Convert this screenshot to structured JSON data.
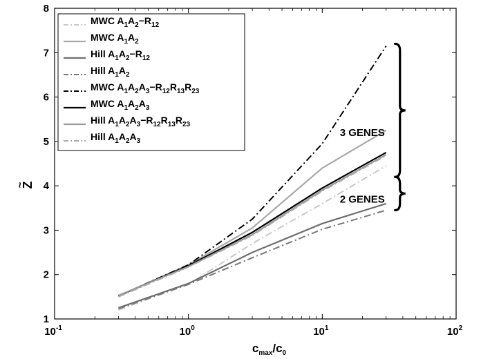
{
  "chart_data": {
    "type": "line",
    "xscale": "log",
    "xlim": [
      0.1,
      100
    ],
    "ylim": [
      1,
      8
    ],
    "x_ticks": [
      {
        "value": 0.1,
        "base": "10",
        "exp": "-1"
      },
      {
        "value": 1,
        "base": "10",
        "exp": "0"
      },
      {
        "value": 10,
        "base": "10",
        "exp": "1"
      },
      {
        "value": 100,
        "base": "10",
        "exp": "2"
      }
    ],
    "y_ticks": [
      1,
      2,
      3,
      4,
      5,
      6,
      7,
      8
    ],
    "xlabel": {
      "main": "c",
      "sub1": "max",
      "slash": "/c",
      "sub2": "0"
    },
    "ylabel": "Z",
    "ylabel_accent": "~",
    "grid": false,
    "legend_position": "top-left",
    "x": [
      0.3,
      1,
      3,
      10,
      30
    ],
    "series": [
      {
        "name_parts": [
          [
            "MWC A",
            ""
          ],
          [
            "1",
            "sub"
          ],
          [
            "A",
            ""
          ],
          [
            "2",
            "sub"
          ],
          [
            "−R",
            ""
          ],
          [
            "12",
            "sub"
          ]
        ],
        "values": [
          1.2,
          1.78,
          2.7,
          3.6,
          4.45
        ],
        "color": "#c8c8c8",
        "dash": "10,4,2,4",
        "width": 2
      },
      {
        "name_parts": [
          [
            "MWC A",
            ""
          ],
          [
            "1",
            "sub"
          ],
          [
            "A",
            ""
          ],
          [
            "2",
            "sub"
          ]
        ],
        "values": [
          1.52,
          2.22,
          3.05,
          4.4,
          5.25
        ],
        "color": "#a8a8a8",
        "dash": "",
        "width": 2.2
      },
      {
        "name_parts": [
          [
            "Hill A",
            ""
          ],
          [
            "1",
            "sub"
          ],
          [
            "A",
            ""
          ],
          [
            "2",
            "sub"
          ],
          [
            "−R",
            ""
          ],
          [
            "12",
            "sub"
          ]
        ],
        "values": [
          1.25,
          1.8,
          2.5,
          3.15,
          3.6
        ],
        "color": "#6e6e6e",
        "dash": "",
        "width": 2.2
      },
      {
        "name_parts": [
          [
            "Hill A",
            ""
          ],
          [
            "1",
            "sub"
          ],
          [
            "A",
            ""
          ],
          [
            "2",
            "sub"
          ]
        ],
        "values": [
          1.23,
          1.78,
          2.38,
          3.02,
          3.45
        ],
        "color": "#777777",
        "dash": "10,4,2,4",
        "width": 2
      },
      {
        "name_parts": [
          [
            "MWC A",
            ""
          ],
          [
            "1",
            "sub"
          ],
          [
            "A",
            ""
          ],
          [
            "2",
            "sub"
          ],
          [
            "A",
            ""
          ],
          [
            "3",
            "sub"
          ],
          [
            "−R",
            ""
          ],
          [
            "12",
            "sub"
          ],
          [
            "R",
            ""
          ],
          [
            "13",
            "sub"
          ],
          [
            "R",
            ""
          ],
          [
            "23",
            "sub"
          ]
        ],
        "values": [
          1.52,
          2.22,
          3.25,
          4.95,
          7.15
        ],
        "color": "#000000",
        "dash": "10,4,2,4",
        "width": 2
      },
      {
        "name_parts": [
          [
            "MWC A",
            ""
          ],
          [
            "1",
            "sub"
          ],
          [
            "A",
            ""
          ],
          [
            "2",
            "sub"
          ],
          [
            "A",
            ""
          ],
          [
            "3",
            "sub"
          ]
        ],
        "values": [
          1.52,
          2.2,
          2.95,
          3.95,
          4.75
        ],
        "color": "#000000",
        "dash": "",
        "width": 2.2
      },
      {
        "name_parts": [
          [
            "Hill A",
            ""
          ],
          [
            "1",
            "sub"
          ],
          [
            "A",
            ""
          ],
          [
            "2",
            "sub"
          ],
          [
            "A",
            ""
          ],
          [
            "3",
            "sub"
          ],
          [
            "−R",
            ""
          ],
          [
            "12",
            "sub"
          ],
          [
            "R",
            ""
          ],
          [
            "13",
            "sub"
          ],
          [
            "R",
            ""
          ],
          [
            "23",
            "sub"
          ]
        ],
        "values": [
          1.53,
          2.18,
          2.9,
          3.9,
          4.7
        ],
        "color": "#999999",
        "dash": "",
        "width": 2.2
      },
      {
        "name_parts": [
          [
            "Hill A",
            ""
          ],
          [
            "1",
            "sub"
          ],
          [
            "A",
            ""
          ],
          [
            "2",
            "sub"
          ],
          [
            "A",
            ""
          ],
          [
            "3",
            "sub"
          ]
        ],
        "values": [
          1.5,
          2.17,
          2.88,
          3.88,
          4.68
        ],
        "color": "#aaaaaa",
        "dash": "10,4,2,4",
        "width": 2
      }
    ],
    "annotations": [
      {
        "text": "3 GENES",
        "y_from": 4.2,
        "y_to": 7.2,
        "label_y": 5.2
      },
      {
        "text": "2 GENES",
        "y_from": 3.45,
        "y_to": 4.2,
        "label_y": 3.7
      }
    ]
  }
}
